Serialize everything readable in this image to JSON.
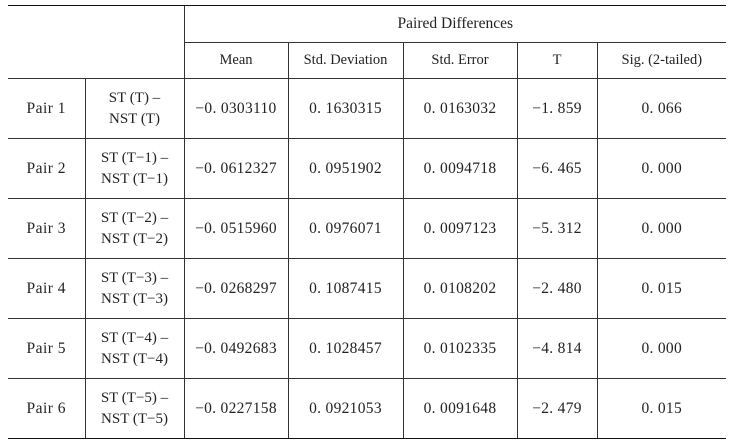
{
  "table": {
    "super_header": "Paired Differences",
    "columns": [
      "Mean",
      "Std.  Deviation",
      "Std.  Error",
      "T",
      "Sig. (2-tailed)"
    ],
    "rows": [
      {
        "pair": "Pair 1",
        "var_line1": "ST (T) –",
        "var_line2": "NST (T)",
        "cells": [
          "−0. 0303110",
          "0. 1630315",
          "0. 0163032",
          "−1. 859",
          "0. 066"
        ]
      },
      {
        "pair": "Pair 2",
        "var_line1": "ST (T−1) –",
        "var_line2": "NST (T−1)",
        "cells": [
          "−0. 0612327",
          "0. 0951902",
          "0. 0094718",
          "−6. 465",
          "0. 000"
        ]
      },
      {
        "pair": "Pair 3",
        "var_line1": "ST (T−2) –",
        "var_line2": "NST (T−2)",
        "cells": [
          "−0. 0515960",
          "0. 0976071",
          "0. 0097123",
          "−5. 312",
          "0. 000"
        ]
      },
      {
        "pair": "Pair 4",
        "var_line1": "ST (T−3) –",
        "var_line2": "NST (T−3)",
        "cells": [
          "−0. 0268297",
          "0. 1087415",
          "0. 0108202",
          "−2. 480",
          "0. 015"
        ]
      },
      {
        "pair": "Pair 5",
        "var_line1": "ST (T−4) –",
        "var_line2": "NST (T−4)",
        "cells": [
          "−0. 0492683",
          "0. 1028457",
          "0. 0102335",
          "−4. 814",
          "0. 000"
        ]
      },
      {
        "pair": "Pair 6",
        "var_line1": "ST (T−5) –",
        "var_line2": "NST (T−5)",
        "cells": [
          "−0. 0227158",
          "0. 0921053",
          "0. 0091648",
          "−2. 479",
          "0. 015"
        ]
      }
    ]
  }
}
